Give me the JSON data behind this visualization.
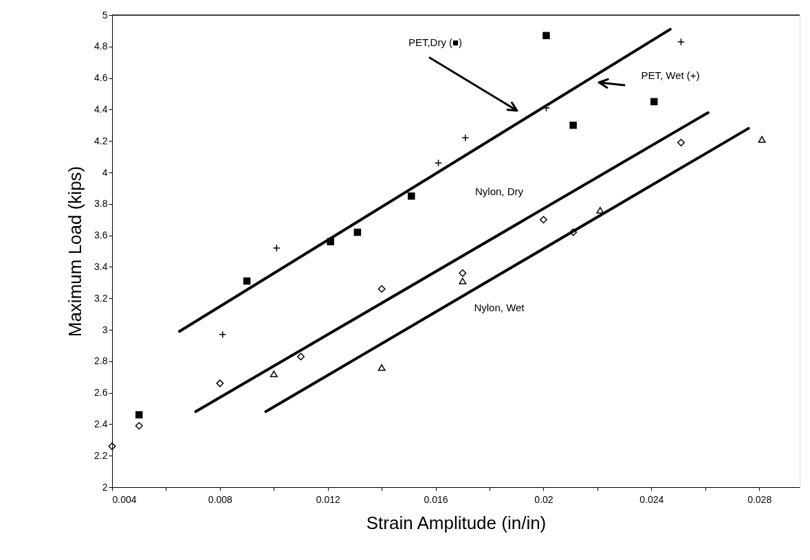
{
  "chart_data": {
    "type": "scatter",
    "xlabel": "Strain Amplitude (in/in)",
    "ylabel": "Maximum Load (kips)",
    "xlim": [
      0.004,
      0.0295
    ],
    "ylim": [
      2,
      5
    ],
    "xticks": [
      0.004,
      {
        "value": 0.006,
        "label": null
      },
      0.008,
      {
        "value": 0.01,
        "label": null
      },
      0.012,
      {
        "value": 0.014,
        "label": null
      },
      0.016,
      {
        "value": 0.018,
        "label": null
      },
      0.02,
      {
        "value": 0.022,
        "label": null
      },
      0.024,
      {
        "value": 0.026,
        "label": null
      },
      0.028
    ],
    "yticks": [
      2,
      2.2,
      2.4,
      2.6,
      2.8,
      3,
      3.2,
      3.4,
      3.6,
      3.8,
      4,
      4.2,
      4.4,
      4.6,
      4.8,
      5
    ],
    "grid": false,
    "series": [
      {
        "marker": "square",
        "color": "#000000",
        "x": [
          0.005,
          0.009,
          0.0121,
          0.0131,
          0.0151,
          0.0201,
          0.0211,
          0.0241
        ],
        "values": [
          2.46,
          3.31,
          3.56,
          3.62,
          3.85,
          4.87,
          4.3,
          4.45
        ]
      },
      {
        "marker": "cross",
        "color": "#000000",
        "x": [
          0.0081,
          0.0101,
          0.0161,
          0.0171,
          0.0201,
          0.0251
        ],
        "values": [
          2.97,
          3.52,
          4.06,
          4.22,
          4.41,
          4.83
        ]
      },
      {
        "marker": "diamond",
        "color": "#000000",
        "x": [
          0.004,
          0.005,
          0.008,
          0.011,
          0.014,
          0.017,
          0.02,
          0.0211,
          0.0251
        ],
        "values": [
          2.26,
          2.39,
          2.66,
          2.83,
          3.26,
          3.36,
          3.7,
          3.62,
          4.19
        ]
      },
      {
        "marker": "triangle",
        "color": "#000000",
        "x": [
          0.01,
          0.014,
          0.017,
          0.0221,
          0.0281
        ],
        "values": [
          2.72,
          2.76,
          3.31,
          3.76,
          4.21
        ]
      },
      {
        "type": "line",
        "marker": "none",
        "line_style": "solid",
        "color": "#000000",
        "x": [
          0.0065,
          0.0247
        ],
        "values": [
          2.99,
          4.91
        ]
      },
      {
        "type": "line",
        "marker": "none",
        "line_style": "solid",
        "color": "#000000",
        "x": [
          0.0071,
          0.0261
        ],
        "values": [
          2.48,
          4.38
        ]
      },
      {
        "type": "line",
        "marker": "none",
        "line_style": "solid",
        "color": "#000000",
        "x": [
          0.0097,
          0.0276
        ],
        "values": [
          2.48,
          4.28
        ]
      }
    ],
    "annotations": [
      "PET,Dry (■)",
      "PET, Wet (+)",
      "Nylon, Dry",
      "Nylon, Wet"
    ]
  }
}
